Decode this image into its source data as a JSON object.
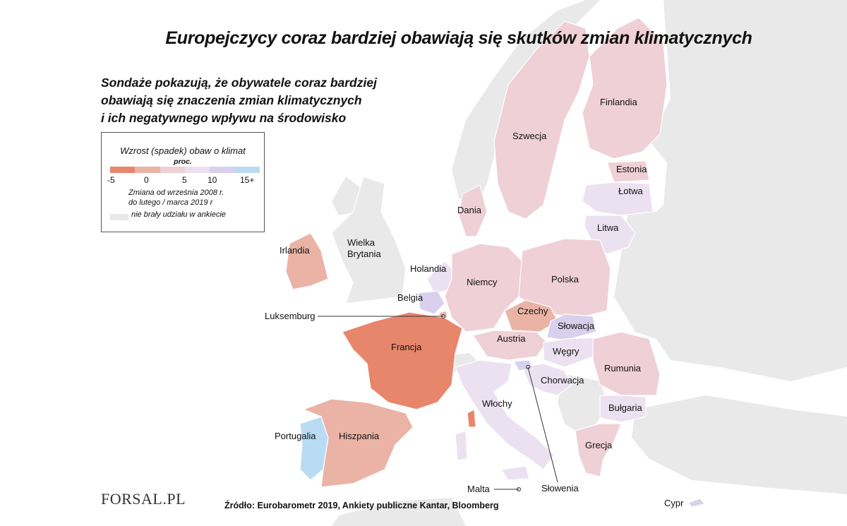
{
  "title": "Europejczycy coraz bardziej obawiają się skutków zmian klimatycznych",
  "subtitle": [
    "Sondaże pokazują, że obywatele coraz bardziej",
    "obawiają się znaczenia zmian klimatycznych",
    "i ich negatywnego wpływu na środowisko"
  ],
  "legend": {
    "title": "Wzrost (spadek) obaw o klimat",
    "unit": "proc.",
    "ticks": [
      "-5",
      "0",
      "5",
      "10",
      "15+"
    ],
    "colors": [
      "#e8866b",
      "#eab3a6",
      "#efd0d6",
      "#ece1f1",
      "#d8d0ec",
      "#b9dcf4"
    ],
    "note": [
      "Zmiana od września 2008 r.",
      "do lutego / marca 2019 r"
    ],
    "nodata_label": "nie brały udziału w ankiecie",
    "nodata_color": "#e9e9e9"
  },
  "countries": [
    {
      "name": "Finlandia",
      "fill": "#efd0d6"
    },
    {
      "name": "Szwecja",
      "fill": "#efd0d6"
    },
    {
      "name": "Estonia",
      "fill": "#efd0d6"
    },
    {
      "name": "Łotwa",
      "fill": "#ece1f1"
    },
    {
      "name": "Litwa",
      "fill": "#ece1f1"
    },
    {
      "name": "Dania",
      "fill": "#efd0d6"
    },
    {
      "name": "Irlandia",
      "fill": "#eab3a6"
    },
    {
      "name": "Wielka Brytania",
      "fill": "#e9e9e9"
    },
    {
      "name": "Holandia",
      "fill": "#ece1f1"
    },
    {
      "name": "Belgia",
      "fill": "#d8d0ec"
    },
    {
      "name": "Luksemburg",
      "fill": "#eab3a6"
    },
    {
      "name": "Niemcy",
      "fill": "#efd0d6"
    },
    {
      "name": "Polska",
      "fill": "#efd0d6"
    },
    {
      "name": "Czechy",
      "fill": "#eab3a6"
    },
    {
      "name": "Słowacja",
      "fill": "#d8d0ec"
    },
    {
      "name": "Francja",
      "fill": "#e8866b"
    },
    {
      "name": "Austria",
      "fill": "#efd0d6"
    },
    {
      "name": "Węgry",
      "fill": "#ece1f1"
    },
    {
      "name": "Rumunia",
      "fill": "#efd0d6"
    },
    {
      "name": "Chorwacja",
      "fill": "#ece1f1"
    },
    {
      "name": "Słowenia",
      "fill": "#d8d0ec"
    },
    {
      "name": "Włochy",
      "fill": "#ece1f1"
    },
    {
      "name": "Bułgaria",
      "fill": "#ece1f1"
    },
    {
      "name": "Portugalia",
      "fill": "#b9dcf4"
    },
    {
      "name": "Hiszpania",
      "fill": "#eab3a6"
    },
    {
      "name": "Grecja",
      "fill": "#efd0d6"
    },
    {
      "name": "Malta",
      "fill": "#ece1f1"
    },
    {
      "name": "Cypr",
      "fill": "#d8d0ec"
    }
  ],
  "source": "Źródło: Eurobarometr 2019, Ankiety publiczne Kantar, Bloomberg",
  "logo": "FORSAL.PL"
}
